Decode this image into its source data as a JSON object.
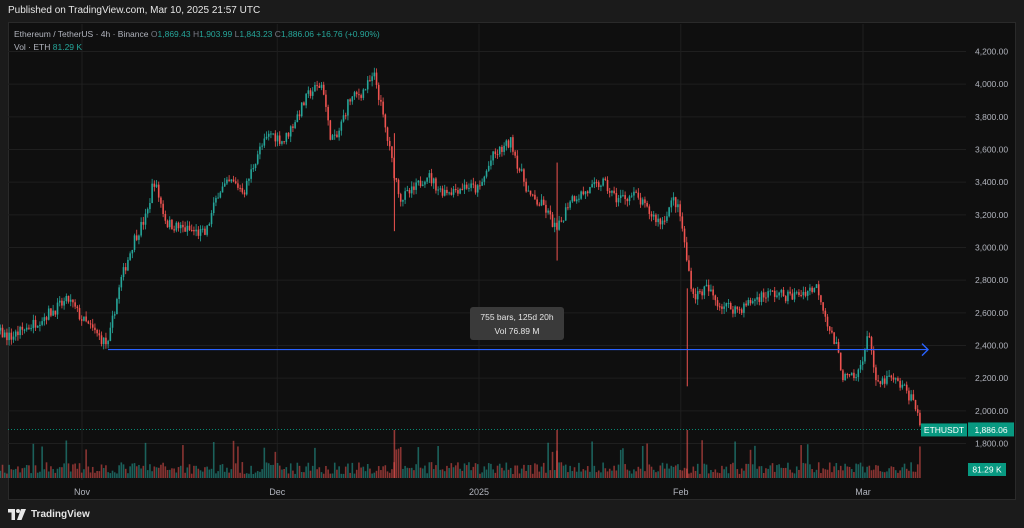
{
  "header": {
    "published": "Published on TradingView.com, Mar 10, 2025 21:57 UTC"
  },
  "legend": {
    "symbol": "Ethereum / TetherUS · 4h · Binance",
    "o_label": "O",
    "o_value": "1,869.43",
    "h_label": "H",
    "h_value": "1,903.99",
    "l_label": "L",
    "l_value": "1,843.23",
    "c_label": "C",
    "c_value": "1,886.06",
    "change": "+16.76 (+0.90%)",
    "vol_label": "Vol · ETH",
    "vol_value": "81.29 K"
  },
  "footer": {
    "brand": "TradingView"
  },
  "colors": {
    "up": "#26a69a",
    "down": "#ef5350",
    "measure_line": "#2962ff",
    "price_label_bg": "#089981"
  },
  "chart_data": {
    "type": "candlestick",
    "symbol": "ETHUSDT",
    "timeframe": "4h",
    "ylim": [
      1700,
      4300
    ],
    "yticks": [
      1800,
      2000,
      2200,
      2400,
      2600,
      2800,
      3000,
      3200,
      3400,
      3600,
      3800,
      4000,
      4200
    ],
    "ytick_labels": [
      "1,800.00",
      "2,000.00",
      "2,200.00",
      "2,400.00",
      "2,600.00",
      "2,800.00",
      "3,000.00",
      "3,200.00",
      "3,400.00",
      "3,600.00",
      "3,800.00",
      "4,000.00",
      "4,200.00"
    ],
    "xlabels": [
      "Nov",
      "Dec",
      "2025",
      "Feb",
      "Mar"
    ],
    "xlabel_dates": [
      "2024-11-01",
      "2024-12-01",
      "2025-01-01",
      "2025-02-01",
      "2025-03-01"
    ],
    "date_range": [
      "2024-10-11",
      "2025-03-10"
    ],
    "last_price": 1886.06,
    "last_price_label": "1,886.06",
    "price_tag": "ETHUSDT",
    "volume_tag": "81.29 K",
    "price_path": [
      [
        "2024-10-11",
        2740
      ],
      [
        "2024-10-15",
        2600
      ],
      [
        "2024-10-18",
        2500
      ],
      [
        "2024-10-21",
        2450
      ],
      [
        "2024-10-24",
        2520
      ],
      [
        "2024-10-27",
        2600
      ],
      [
        "2024-10-30",
        2680
      ],
      [
        "2024-11-01",
        2560
      ],
      [
        "2024-11-03",
        2480
      ],
      [
        "2024-11-05",
        2400
      ],
      [
        "2024-11-06",
        2620
      ],
      [
        "2024-11-07",
        2800
      ],
      [
        "2024-11-09",
        3050
      ],
      [
        "2024-11-11",
        3200
      ],
      [
        "2024-11-12",
        3420
      ],
      [
        "2024-11-14",
        3150
      ],
      [
        "2024-11-16",
        3120
      ],
      [
        "2024-11-18",
        3100
      ],
      [
        "2024-11-20",
        3080
      ],
      [
        "2024-11-22",
        3350
      ],
      [
        "2024-11-24",
        3400
      ],
      [
        "2024-11-26",
        3350
      ],
      [
        "2024-11-28",
        3580
      ],
      [
        "2024-11-30",
        3700
      ],
      [
        "2024-12-02",
        3650
      ],
      [
        "2024-12-04",
        3800
      ],
      [
        "2024-12-06",
        3950
      ],
      [
        "2024-12-08",
        4000
      ],
      [
        "2024-12-09",
        3700
      ],
      [
        "2024-12-10",
        3650
      ],
      [
        "2024-12-12",
        3900
      ],
      [
        "2024-12-14",
        3950
      ],
      [
        "2024-12-16",
        4050
      ],
      [
        "2024-12-17",
        3850
      ],
      [
        "2024-12-19",
        3450
      ],
      [
        "2024-12-20",
        3300
      ],
      [
        "2024-12-22",
        3350
      ],
      [
        "2024-12-24",
        3450
      ],
      [
        "2024-12-26",
        3350
      ],
      [
        "2024-12-28",
        3350
      ],
      [
        "2024-12-30",
        3380
      ],
      [
        "2025-01-01",
        3350
      ],
      [
        "2025-01-03",
        3550
      ],
      [
        "2025-01-06",
        3650
      ],
      [
        "2025-01-07",
        3500
      ],
      [
        "2025-01-09",
        3300
      ],
      [
        "2025-01-11",
        3250
      ],
      [
        "2025-01-13",
        3100
      ],
      [
        "2025-01-15",
        3300
      ],
      [
        "2025-01-18",
        3350
      ],
      [
        "2025-01-20",
        3400
      ],
      [
        "2025-01-22",
        3300
      ],
      [
        "2025-01-25",
        3320
      ],
      [
        "2025-01-27",
        3220
      ],
      [
        "2025-01-29",
        3150
      ],
      [
        "2025-01-31",
        3300
      ],
      [
        "2025-02-01",
        3180
      ],
      [
        "2025-02-02",
        2900
      ],
      [
        "2025-02-03",
        2700
      ],
      [
        "2025-02-05",
        2750
      ],
      [
        "2025-02-07",
        2650
      ],
      [
        "2025-02-10",
        2620
      ],
      [
        "2025-02-13",
        2700
      ],
      [
        "2025-02-15",
        2720
      ],
      [
        "2025-02-18",
        2700
      ],
      [
        "2025-02-20",
        2730
      ],
      [
        "2025-02-22",
        2760
      ],
      [
        "2025-02-24",
        2480
      ],
      [
        "2025-02-25",
        2380
      ],
      [
        "2025-02-26",
        2200
      ],
      [
        "2025-02-28",
        2200
      ],
      [
        "2025-03-02",
        2480
      ],
      [
        "2025-03-03",
        2150
      ],
      [
        "2025-03-05",
        2200
      ],
      [
        "2025-03-07",
        2150
      ],
      [
        "2025-03-09",
        2050
      ],
      [
        "2025-03-10",
        1886
      ]
    ],
    "wick_spikes": [
      {
        "date": "2025-02-02",
        "low": 2150
      },
      {
        "date": "2024-12-19",
        "low": 3100
      },
      {
        "date": "2025-01-13",
        "low": 2920
      }
    ],
    "measure": {
      "from": "2024-11-05",
      "to": "2025-03-12",
      "price": 2375,
      "label_line1": "755 bars, 125d 20h",
      "label_line2": "Vol 76.89 M"
    }
  }
}
